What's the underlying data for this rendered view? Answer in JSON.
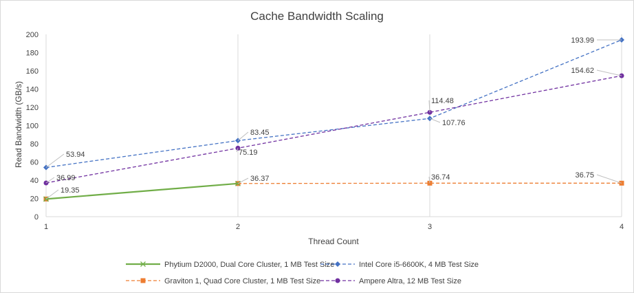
{
  "chart_data": {
    "type": "line",
    "title": "Cache Bandwidth Scaling",
    "xlabel": "Thread Count",
    "ylabel": "Read Bandwidth (GB/s)",
    "x": [
      1,
      2,
      3,
      4
    ],
    "xlim": [
      1,
      4
    ],
    "ylim": [
      0,
      200
    ],
    "yticks": [
      0,
      20,
      40,
      60,
      80,
      100,
      120,
      140,
      160,
      180,
      200
    ],
    "xticks": [
      1,
      2,
      3,
      4
    ],
    "grid": "vertical",
    "legend_position": "bottom",
    "series": [
      {
        "name": "Phytium D2000, Dual Core Cluster, 1 MB Test Size",
        "values": [
          19.35,
          36.37,
          null,
          null
        ],
        "color": "#70ad47",
        "line": "solid",
        "marker": "x",
        "labels": []
      },
      {
        "name": "Intel Core i5-6600K, 4 MB Test Size",
        "values": [
          53.94,
          83.45,
          107.76,
          193.99
        ],
        "color": "#4472c4",
        "line": "dashed",
        "marker": "diamond",
        "labels": [
          "53.94",
          "83.45",
          "107.76",
          "193.99"
        ]
      },
      {
        "name": "Graviton 1, Quad Core Cluster, 1 MB Test Size",
        "values": [
          19.35,
          36.37,
          36.74,
          36.75
        ],
        "color": "#ed7d31",
        "line": "dashed",
        "marker": "square",
        "labels": [
          "19.35",
          "36.37",
          "36.74",
          "36.75"
        ]
      },
      {
        "name": "Ampere Altra, 12 MB Test Size",
        "values": [
          36.99,
          75.19,
          114.48,
          154.62
        ],
        "color": "#7030a0",
        "line": "dashed",
        "marker": "circle",
        "labels": [
          "36.99",
          "75.19",
          "114.48",
          "154.62"
        ]
      }
    ]
  }
}
